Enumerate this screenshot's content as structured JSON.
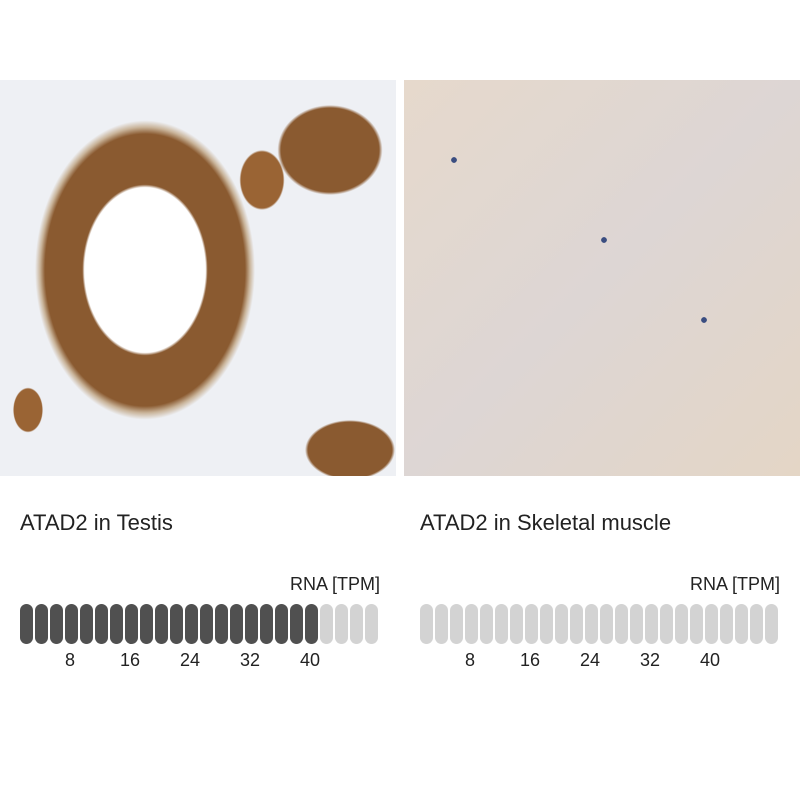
{
  "panels": [
    {
      "title": "ATAD2 in Testis",
      "unit_label": "RNA [TPM]",
      "segments": 24,
      "tpm_per_segment": 2,
      "filled_segments": 20,
      "value_tpm": 40,
      "ticks": [
        "8",
        "16",
        "24",
        "32",
        "40"
      ],
      "fill_color": "#505050",
      "empty_color": "#d3d3d3"
    },
    {
      "title": "ATAD2 in Skeletal muscle",
      "unit_label": "RNA [TPM]",
      "segments": 24,
      "tpm_per_segment": 2,
      "filled_segments": 0,
      "value_tpm": 0,
      "ticks": [
        "8",
        "16",
        "24",
        "32",
        "40"
      ],
      "fill_color": "#505050",
      "empty_color": "#d3d3d3"
    }
  ]
}
